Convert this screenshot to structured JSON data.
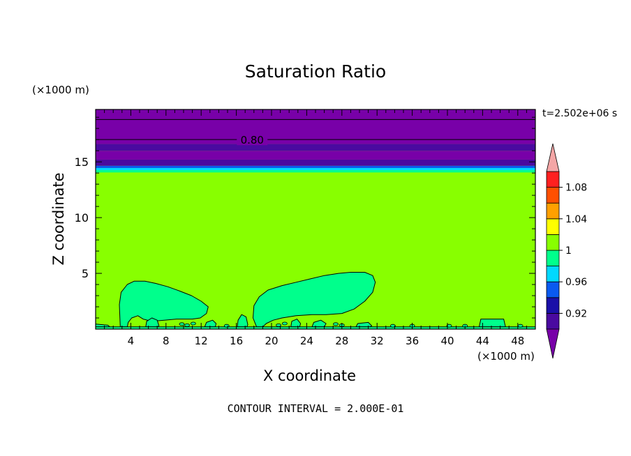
{
  "chart_data": {
    "type": "contour",
    "title": "Saturation Ratio",
    "xlabel": "X coordinate",
    "ylabel": "Z coordinate",
    "x_unit": "(×1000 m)",
    "y_unit": "(×1000 m)",
    "time_label": "t=2.502e+06 s",
    "footer": "CONTOUR INTERVAL = 2.000E-01",
    "xlim": [
      0,
      50
    ],
    "ylim": [
      0,
      19.7
    ],
    "x_ticks": [
      4,
      8,
      12,
      16,
      20,
      24,
      28,
      32,
      36,
      40,
      44,
      48
    ],
    "y_ticks": [
      5,
      10,
      15
    ],
    "contour_label": "0.80",
    "contour_lines_z": [
      17.0,
      18.8
    ],
    "colorbar": {
      "labels": [
        "1.08",
        "1.04",
        "1",
        "0.96",
        "0.92"
      ],
      "label_values": [
        1.08,
        1.04,
        1.0,
        0.96,
        0.92
      ],
      "levels": [
        0.9,
        0.92,
        0.94,
        0.96,
        0.98,
        1.0,
        1.02,
        1.04,
        1.06,
        1.08,
        1.1
      ],
      "colors": [
        "#4a0aa0",
        "#1a10a8",
        "#0a5af0",
        "#00d8ff",
        "#00ff8c",
        "#88ff00",
        "#ffff00",
        "#ffa000",
        "#ff5000",
        "#ff2020"
      ],
      "under_color": "#7800a8",
      "over_color": "#f4a6a6"
    },
    "bands": [
      {
        "z0": 14.05,
        "z1": 14.25,
        "color": "#00ff8c"
      },
      {
        "z0": 14.25,
        "z1": 14.45,
        "color": "#00d8ff"
      },
      {
        "z0": 14.45,
        "z1": 14.65,
        "color": "#0a5af0"
      },
      {
        "z0": 14.65,
        "z1": 15.2,
        "color": "#4a0aa0"
      },
      {
        "z0": 15.2,
        "z1": 16.0,
        "color": "#7800a8"
      },
      {
        "z0": 16.0,
        "z1": 16.6,
        "color": "#4a0aa0"
      },
      {
        "z0": 16.6,
        "z1": 19.7,
        "color": "#7800a8"
      }
    ],
    "background_color": "#88ff00",
    "regions": [
      {
        "color": "#00ff8c",
        "points": [
          [
            2.8,
            0.2
          ],
          [
            2.7,
            2.2
          ],
          [
            2.9,
            3.3
          ],
          [
            3.6,
            4.0
          ],
          [
            4.4,
            4.3
          ],
          [
            5.6,
            4.3
          ],
          [
            6.8,
            4.1
          ],
          [
            8.2,
            3.8
          ],
          [
            9.6,
            3.4
          ],
          [
            10.9,
            3.0
          ],
          [
            12.0,
            2.5
          ],
          [
            12.8,
            2.0
          ],
          [
            12.6,
            1.4
          ],
          [
            11.9,
            1.0
          ],
          [
            11.0,
            0.9
          ],
          [
            9.2,
            0.9
          ],
          [
            7.8,
            0.8
          ],
          [
            6.4,
            0.7
          ],
          [
            5.4,
            0.9
          ],
          [
            4.8,
            1.2
          ],
          [
            4.1,
            1.0
          ],
          [
            3.7,
            0.6
          ],
          [
            3.6,
            0.2
          ]
        ]
      },
      {
        "color": "#00ff8c",
        "points": [
          [
            18.3,
            0.2
          ],
          [
            17.9,
            1.0
          ],
          [
            18.0,
            2.1
          ],
          [
            18.6,
            2.9
          ],
          [
            19.6,
            3.5
          ],
          [
            21.2,
            3.9
          ],
          [
            22.8,
            4.2
          ],
          [
            24.4,
            4.5
          ],
          [
            26.0,
            4.8
          ],
          [
            27.6,
            5.0
          ],
          [
            29.0,
            5.1
          ],
          [
            30.6,
            5.1
          ],
          [
            31.5,
            4.8
          ],
          [
            31.8,
            4.2
          ],
          [
            31.5,
            3.3
          ],
          [
            30.6,
            2.5
          ],
          [
            29.4,
            1.8
          ],
          [
            28.0,
            1.4
          ],
          [
            26.2,
            1.3
          ],
          [
            24.6,
            1.3
          ],
          [
            22.8,
            1.2
          ],
          [
            21.2,
            1.0
          ],
          [
            20.2,
            0.8
          ],
          [
            19.4,
            0.5
          ],
          [
            19.0,
            0.2
          ]
        ]
      },
      {
        "color": "#00ff8c",
        "points": [
          [
            16.1,
            0.2
          ],
          [
            16.2,
            0.8
          ],
          [
            16.6,
            1.3
          ],
          [
            17.1,
            1.1
          ],
          [
            17.3,
            0.4
          ],
          [
            17.2,
            0.2
          ]
        ]
      },
      {
        "color": "#00ff8c",
        "points": [
          [
            5.7,
            0.2
          ],
          [
            5.8,
            0.7
          ],
          [
            6.4,
            1.0
          ],
          [
            7.0,
            0.8
          ],
          [
            7.2,
            0.3
          ],
          [
            7.1,
            0.2
          ]
        ]
      },
      {
        "color": "#00ff8c",
        "points": [
          [
            12.4,
            0.2
          ],
          [
            12.6,
            0.6
          ],
          [
            13.3,
            0.8
          ],
          [
            13.7,
            0.5
          ],
          [
            13.6,
            0.2
          ]
        ]
      },
      {
        "color": "#00ff8c",
        "points": [
          [
            22.2,
            0.2
          ],
          [
            22.3,
            0.7
          ],
          [
            22.9,
            0.9
          ],
          [
            23.3,
            0.5
          ],
          [
            23.2,
            0.2
          ]
        ]
      },
      {
        "color": "#00ff8c",
        "points": [
          [
            24.6,
            0.2
          ],
          [
            24.8,
            0.6
          ],
          [
            25.6,
            0.8
          ],
          [
            26.2,
            0.5
          ],
          [
            26.0,
            0.2
          ]
        ]
      },
      {
        "color": "#00ff8c",
        "points": [
          [
            29.6,
            0.2
          ],
          [
            29.8,
            0.5
          ],
          [
            31.0,
            0.6
          ],
          [
            31.4,
            0.3
          ],
          [
            31.2,
            0.2
          ]
        ]
      },
      {
        "color": "#00ff8c",
        "points": [
          [
            43.6,
            0.2
          ],
          [
            43.8,
            0.9
          ],
          [
            46.4,
            0.9
          ],
          [
            46.6,
            0.2
          ]
        ]
      },
      {
        "color": "#00ff8c",
        "points": [
          [
            0,
            0.2
          ],
          [
            0,
            0.45
          ],
          [
            1.4,
            0.35
          ],
          [
            1.6,
            0.2
          ]
        ]
      },
      {
        "color": "#00ff8c",
        "points": [
          [
            0,
            0
          ],
          [
            50,
            0
          ],
          [
            50,
            0.2
          ],
          [
            0,
            0.2
          ]
        ]
      }
    ],
    "small_dots": [
      [
        9.8,
        0.45
      ],
      [
        10.4,
        0.35
      ],
      [
        11.1,
        0.5
      ],
      [
        14.9,
        0.3
      ],
      [
        20.8,
        0.35
      ],
      [
        21.5,
        0.5
      ],
      [
        27.3,
        0.45
      ],
      [
        28.0,
        0.35
      ],
      [
        33.8,
        0.3
      ],
      [
        36.0,
        0.3
      ],
      [
        40.2,
        0.3
      ],
      [
        42.0,
        0.3
      ],
      [
        48.3,
        0.3
      ]
    ]
  }
}
